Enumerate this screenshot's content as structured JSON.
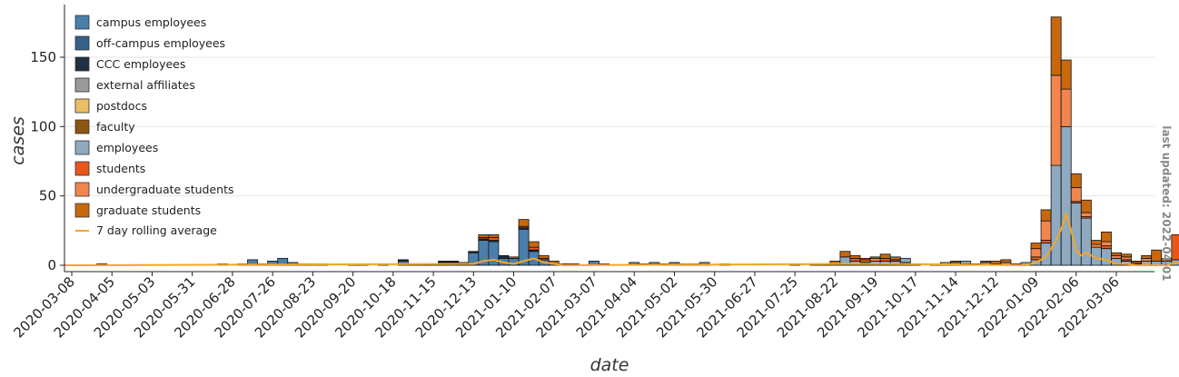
{
  "chart_data": {
    "type": "bar",
    "stacked": true,
    "xlabel": "date",
    "ylabel": "cases",
    "ylim": [
      -4,
      188
    ],
    "yticks": [
      0,
      50,
      100,
      150
    ],
    "x_ticks": [
      "2020-03-08",
      "2020-04-05",
      "2020-05-03",
      "2020-05-31",
      "2020-06-28",
      "2020-07-26",
      "2020-08-23",
      "2020-09-20",
      "2020-10-18",
      "2020-11-15",
      "2020-12-13",
      "2021-01-10",
      "2021-02-07",
      "2021-03-07",
      "2021-04-04",
      "2021-05-02",
      "2021-05-30",
      "2021-06-27",
      "2021-07-25",
      "2021-08-22",
      "2021-09-19",
      "2021-10-17",
      "2021-11-14",
      "2021-12-12",
      "2022-01-09",
      "2022-02-06",
      "2022-03-06"
    ],
    "first_week": "2020-03-08",
    "bin_days": 7,
    "grid": "horizontal",
    "legend_position": "top-left",
    "series": [
      {
        "name": "campus employees",
        "color": "#4a7fab"
      },
      {
        "name": "off-campus employees",
        "color": "#356088"
      },
      {
        "name": "CCC employees",
        "color": "#1d3142"
      },
      {
        "name": "external affiliates",
        "color": "#9a9a9a"
      },
      {
        "name": "postdocs",
        "color": "#ecbd62"
      },
      {
        "name": "faculty",
        "color": "#8c5510"
      },
      {
        "name": "employees",
        "color": "#8ea9c0"
      },
      {
        "name": "students",
        "color": "#e8571a"
      },
      {
        "name": "undergraduate students",
        "color": "#f2854e"
      },
      {
        "name": "graduate students",
        "color": "#c8680e"
      }
    ],
    "weeks": [
      {
        "w": 3,
        "v": {
          "campus employees": 1
        }
      },
      {
        "w": 15,
        "v": {
          "campus employees": 1
        }
      },
      {
        "w": 17,
        "v": {
          "campus employees": 1
        }
      },
      {
        "w": 18,
        "v": {
          "campus employees": 4
        }
      },
      {
        "w": 19,
        "v": {
          "campus employees": 1
        }
      },
      {
        "w": 20,
        "v": {
          "campus employees": 3
        }
      },
      {
        "w": 21,
        "v": {
          "campus employees": 5
        }
      },
      {
        "w": 22,
        "v": {
          "campus employees": 2
        }
      },
      {
        "w": 23,
        "v": {
          "campus employees": 1
        }
      },
      {
        "w": 24,
        "v": {
          "campus employees": 1
        }
      },
      {
        "w": 25,
        "v": {
          "campus employees": 1
        }
      },
      {
        "w": 28,
        "v": {
          "campus employees": 1
        }
      },
      {
        "w": 29,
        "v": {
          "campus employees": 1
        }
      },
      {
        "w": 31,
        "v": {
          "campus employees": 1
        }
      },
      {
        "w": 33,
        "v": {
          "campus employees": 3,
          "CCC employees": 1
        }
      },
      {
        "w": 34,
        "v": {
          "campus employees": 1
        }
      },
      {
        "w": 35,
        "v": {
          "campus employees": 1
        }
      },
      {
        "w": 36,
        "v": {
          "campus employees": 1
        }
      },
      {
        "w": 37,
        "v": {
          "campus employees": 2,
          "CCC employees": 1
        }
      },
      {
        "w": 38,
        "v": {
          "campus employees": 2,
          "CCC employees": 1
        }
      },
      {
        "w": 39,
        "v": {
          "campus employees": 2
        }
      },
      {
        "w": 40,
        "v": {
          "campus employees": 9,
          "CCC employees": 1
        }
      },
      {
        "w": 41,
        "v": {
          "campus employees": 18,
          "CCC employees": 1,
          "students": 1,
          "graduate students": 2
        }
      },
      {
        "w": 42,
        "v": {
          "campus employees": 17,
          "CCC employees": 1,
          "students": 2,
          "graduate students": 2
        }
      },
      {
        "w": 43,
        "v": {
          "campus employees": 5,
          "CCC employees": 2
        }
      },
      {
        "w": 44,
        "v": {
          "campus employees": 5,
          "graduate students": 1
        }
      },
      {
        "w": 45,
        "v": {
          "campus employees": 26,
          "CCC employees": 1,
          "students": 1,
          "graduate students": 5
        }
      },
      {
        "w": 46,
        "v": {
          "campus employees": 10,
          "CCC employees": 1,
          "students": 2,
          "graduate students": 4
        }
      },
      {
        "w": 47,
        "v": {
          "campus employees": 4,
          "students": 1,
          "graduate students": 2
        }
      },
      {
        "w": 48,
        "v": {
          "campus employees": 1,
          "graduate students": 2
        }
      },
      {
        "w": 49,
        "v": {
          "campus employees": 1
        }
      },
      {
        "w": 50,
        "v": {
          "campus employees": 1
        }
      },
      {
        "w": 52,
        "v": {
          "campus employees": 3
        }
      },
      {
        "w": 53,
        "v": {
          "campus employees": 1
        }
      },
      {
        "w": 56,
        "v": {
          "campus employees": 2
        }
      },
      {
        "w": 57,
        "v": {
          "campus employees": 1
        }
      },
      {
        "w": 58,
        "v": {
          "campus employees": 2
        }
      },
      {
        "w": 59,
        "v": {
          "campus employees": 1
        }
      },
      {
        "w": 60,
        "v": {
          "campus employees": 2
        }
      },
      {
        "w": 61,
        "v": {
          "campus employees": 1
        }
      },
      {
        "w": 62,
        "v": {
          "campus employees": 1
        }
      },
      {
        "w": 63,
        "v": {
          "campus employees": 2
        }
      },
      {
        "w": 65,
        "v": {
          "campus employees": 1
        }
      },
      {
        "w": 72,
        "v": {
          "campus employees": 1
        }
      },
      {
        "w": 74,
        "v": {
          "campus employees": 1
        }
      },
      {
        "w": 75,
        "v": {
          "campus employees": 1
        }
      },
      {
        "w": 76,
        "v": {
          "campus employees": 1,
          "graduate students": 2
        }
      },
      {
        "w": 77,
        "v": {
          "campus employees": 1,
          "employees": 5,
          "graduate students": 4
        }
      },
      {
        "w": 78,
        "v": {
          "employees": 3,
          "students": 2,
          "graduate students": 2
        }
      },
      {
        "w": 79,
        "v": {
          "employees": 2,
          "students": 2,
          "graduate students": 1
        }
      },
      {
        "w": 80,
        "v": {
          "employees": 3,
          "undergraduate students": 2,
          "graduate students": 1
        }
      },
      {
        "w": 81,
        "v": {
          "employees": 3,
          "students": 2,
          "graduate students": 3
        }
      },
      {
        "w": 82,
        "v": {
          "employees": 3,
          "students": 1,
          "graduate students": 2
        }
      },
      {
        "w": 83,
        "v": {
          "employees": 3,
          "campus employees": 2
        }
      },
      {
        "w": 84,
        "v": {
          "employees": 1
        }
      },
      {
        "w": 86,
        "v": {
          "employees": 1
        }
      },
      {
        "w": 87,
        "v": {
          "employees": 2
        }
      },
      {
        "w": 88,
        "v": {
          "employees": 2,
          "graduate students": 1
        }
      },
      {
        "w": 89,
        "v": {
          "employees": 2,
          "campus employees": 1
        }
      },
      {
        "w": 90,
        "v": {
          "employees": 1
        }
      },
      {
        "w": 91,
        "v": {
          "employees": 2,
          "graduate students": 1
        }
      },
      {
        "w": 92,
        "v": {
          "employees": 1,
          "graduate students": 2
        }
      },
      {
        "w": 93,
        "v": {
          "employees": 2,
          "graduate students": 2
        }
      },
      {
        "w": 94,
        "v": {
          "employees": 1
        }
      },
      {
        "w": 95,
        "v": {
          "employees": 2
        }
      },
      {
        "w": 96,
        "v": {
          "employees": 4,
          "undergraduate students": 6,
          "students": 2,
          "graduate students": 4
        }
      },
      {
        "w": 97,
        "v": {
          "employees": 16,
          "undergraduate students": 14,
          "students": 2,
          "graduate students": 8
        }
      },
      {
        "w": 98,
        "v": {
          "employees": 72,
          "undergraduate students": 65,
          "graduate students": 42
        }
      },
      {
        "w": 99,
        "v": {
          "employees": 100,
          "undergraduate students": 27,
          "graduate students": 21
        }
      },
      {
        "w": 100,
        "v": {
          "employees": 45,
          "undergraduate students": 10,
          "students": 1,
          "graduate students": 10
        }
      },
      {
        "w": 101,
        "v": {
          "employees": 34,
          "undergraduate students": 3,
          "students": 1,
          "graduate students": 9
        }
      },
      {
        "w": 102,
        "v": {
          "employees": 13,
          "undergraduate students": 2,
          "graduate students": 3
        }
      },
      {
        "w": 103,
        "v": {
          "employees": 12,
          "undergraduate students": 3,
          "students": 2,
          "graduate students": 7
        }
      },
      {
        "w": 104,
        "v": {
          "employees": 5,
          "undergraduate students": 2,
          "graduate students": 2
        }
      },
      {
        "w": 105,
        "v": {
          "employees": 3,
          "undergraduate students": 2,
          "students": 1,
          "graduate students": 2
        }
      },
      {
        "w": 106,
        "v": {
          "employees": 1,
          "undergraduate students": 1,
          "graduate students": 1
        }
      },
      {
        "w": 107,
        "v": {
          "employees": 3,
          "undergraduate students": 2,
          "graduate students": 2
        }
      },
      {
        "w": 108,
        "v": {
          "employees": 3,
          "graduate students": 8
        }
      },
      {
        "w": 109,
        "v": {
          "employees": 3,
          "graduate students": 2
        }
      },
      {
        "w": 110,
        "v": {
          "employees": 4,
          "students": 18
        }
      }
    ],
    "rolling_average": {
      "name": "7 day rolling average",
      "color": "#f5a623",
      "points": [
        [
          40,
          1
        ],
        [
          41,
          3
        ],
        [
          42,
          4
        ],
        [
          43,
          2
        ],
        [
          44,
          1
        ],
        [
          45,
          3
        ],
        [
          46,
          5
        ],
        [
          47,
          2
        ],
        [
          48,
          1
        ],
        [
          49,
          0
        ],
        [
          77,
          1
        ],
        [
          78,
          1
        ],
        [
          80,
          1
        ],
        [
          81,
          1
        ],
        [
          95,
          0
        ],
        [
          96,
          2
        ],
        [
          97,
          6
        ],
        [
          98,
          18
        ],
        [
          98.5,
          26
        ],
        [
          99,
          37
        ],
        [
          99.5,
          25
        ],
        [
          100,
          10
        ],
        [
          100.5,
          7
        ],
        [
          101,
          9
        ],
        [
          102,
          5
        ],
        [
          103,
          4
        ],
        [
          104,
          1
        ],
        [
          105,
          1
        ],
        [
          106,
          0
        ],
        [
          109,
          0
        ],
        [
          110,
          2
        ]
      ]
    }
  },
  "legend": {
    "items": [
      "campus employees",
      "off-campus employees",
      "CCC employees",
      "external affiliates",
      "postdocs",
      "faculty",
      "employees",
      "students",
      "undergraduate students",
      "graduate students"
    ],
    "line_item": "7 day rolling average"
  },
  "annotation": {
    "last_updated": "last updated: 2022-04-01"
  }
}
